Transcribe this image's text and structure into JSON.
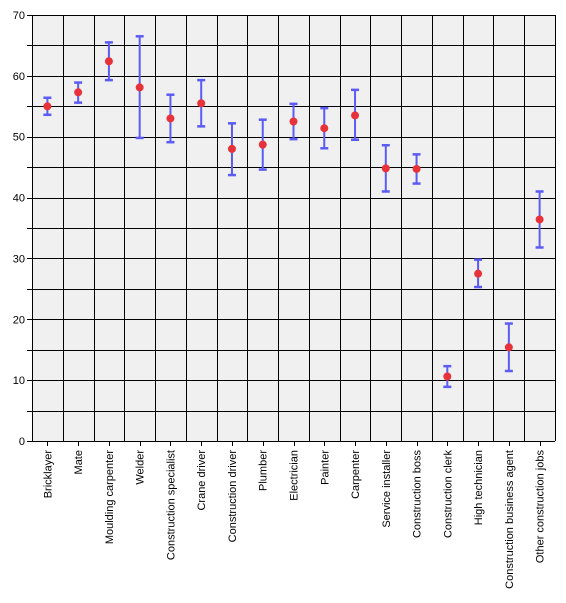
{
  "chart_data": {
    "type": "errorbar",
    "title": "",
    "xlabel": "",
    "ylabel": "",
    "ylim": [
      0,
      70
    ],
    "yticks": [
      0,
      10,
      20,
      30,
      40,
      50,
      60,
      70
    ],
    "grid": true,
    "categories": [
      "Bricklayer",
      "Mate",
      "Moulding carpenter",
      "Welder",
      "Construction specialist",
      "Crane driver",
      "Construction driver",
      "Plumber",
      "Electrician",
      "Painter",
      "Carpenter",
      "Service installer",
      "Construction boss",
      "Construction clerk",
      "High technician",
      "Construction business agent",
      "Other construction jobs"
    ],
    "series": [
      {
        "mean": [
          55.0,
          57.3,
          62.4,
          58.1,
          53.0,
          55.5,
          48.0,
          48.7,
          52.5,
          51.4,
          53.5,
          44.8,
          44.7,
          10.6,
          27.5,
          15.4,
          36.4
        ],
        "lower": [
          53.6,
          55.6,
          59.3,
          49.8,
          49.1,
          51.7,
          43.7,
          44.6,
          49.6,
          48.1,
          49.5,
          41.0,
          42.3,
          8.9,
          25.3,
          11.5,
          31.8
        ],
        "upper": [
          56.4,
          58.9,
          65.5,
          66.5,
          56.9,
          59.3,
          52.2,
          52.8,
          55.4,
          54.7,
          57.7,
          48.6,
          47.1,
          12.3,
          29.8,
          19.3,
          41.0
        ]
      }
    ],
    "colors": {
      "point": "#e8323a",
      "errorbar": "#5b5bf5",
      "plot_bg": "#f0f0f0",
      "grid": "#000000"
    }
  }
}
